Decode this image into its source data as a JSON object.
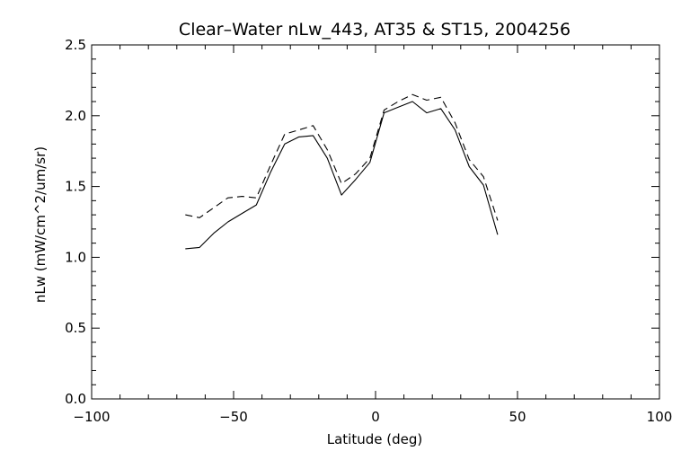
{
  "chart_data": {
    "type": "line",
    "title": "Clear–Water nLw_443, AT35 & ST15, 2004256",
    "xlabel": "Latitude (deg)",
    "ylabel": "nLw (mW/cm^2/um/sr)",
    "xlim": [
      -100,
      100
    ],
    "ylim": [
      0.0,
      2.5
    ],
    "xticks": [
      -100,
      -50,
      0,
      50,
      100
    ],
    "xtick_labels": [
      "−100",
      "−50",
      "0",
      "50",
      "100"
    ],
    "yticks": [
      0.0,
      0.5,
      1.0,
      1.5,
      2.0,
      2.5
    ],
    "ytick_labels": [
      "0.0",
      "0.5",
      "1.0",
      "1.5",
      "2.0",
      "2.5"
    ],
    "grid": false,
    "series": [
      {
        "style": "solid",
        "x": [
          -67,
          -62,
          -57,
          -52,
          -47,
          -42,
          -37,
          -32,
          -27,
          -22,
          -17,
          -12,
          -7,
          -2,
          3,
          8,
          13,
          18,
          23,
          28,
          33,
          38,
          43
        ],
        "y": [
          1.06,
          1.07,
          1.17,
          1.25,
          1.31,
          1.37,
          1.6,
          1.8,
          1.85,
          1.86,
          1.7,
          1.44,
          1.55,
          1.67,
          2.02,
          2.06,
          2.1,
          2.02,
          2.05,
          1.9,
          1.64,
          1.51,
          1.16
        ]
      },
      {
        "style": "dashed",
        "x": [
          -67,
          -62,
          -57,
          -52,
          -47,
          -42,
          -37,
          -32,
          -27,
          -22,
          -17,
          -12,
          -7,
          -2,
          3,
          8,
          13,
          18,
          23,
          28,
          33,
          38,
          43
        ],
        "y": [
          1.3,
          1.28,
          1.35,
          1.42,
          1.43,
          1.42,
          1.65,
          1.87,
          1.9,
          1.93,
          1.76,
          1.52,
          1.59,
          1.7,
          2.04,
          2.1,
          2.15,
          2.11,
          2.13,
          1.95,
          1.69,
          1.57,
          1.26
        ]
      }
    ]
  }
}
